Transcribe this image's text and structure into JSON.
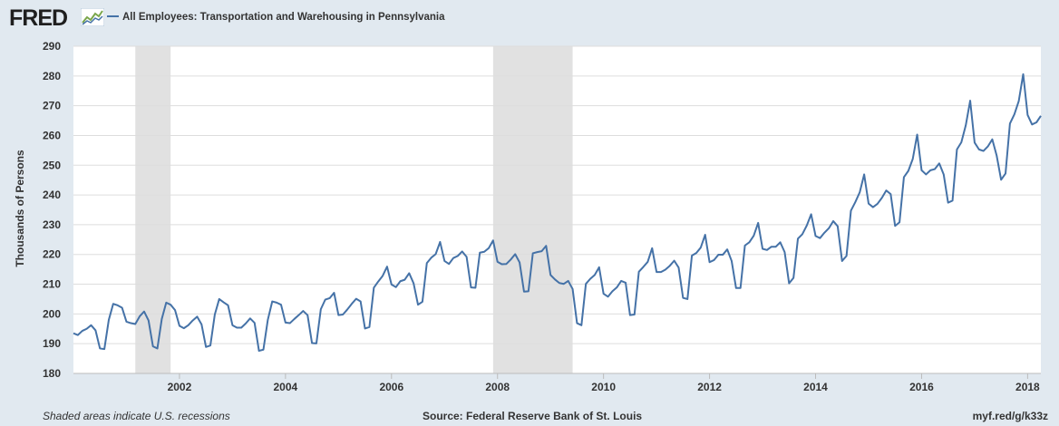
{
  "header": {
    "logo_text": "FRED",
    "logo_icon": "line-chart-icon",
    "legend_label": "All Employees: Transportation and Warehousing in Pennsylvania"
  },
  "footer": {
    "recessions_note": "Shaded areas indicate U.S. recessions",
    "source": "Source: Federal Reserve Bank of St. Louis",
    "short_url": "myf.red/g/k33z"
  },
  "colors": {
    "background": "#e1e9f0",
    "plot_background": "#ffffff",
    "series": "#4572a7",
    "recession": "#e1e1e1",
    "gridline": "#dddddd"
  },
  "chart_data": {
    "type": "line",
    "ylabel": "Thousands of Persons",
    "xlabel": "",
    "ylim": [
      180,
      290
    ],
    "yticks": [
      180,
      190,
      200,
      210,
      220,
      230,
      240,
      250,
      260,
      270,
      280,
      290
    ],
    "xlim": [
      2000.0,
      2018.25
    ],
    "xticks": [
      2002,
      2004,
      2006,
      2008,
      2010,
      2012,
      2014,
      2016,
      2018
    ],
    "grid": "horizontal",
    "legend_position": "top-left",
    "recessions": [
      [
        2001.167,
        2001.833
      ],
      [
        2007.917,
        2009.417
      ]
    ],
    "series": [
      {
        "name": "All Employees: Transportation and Warehousing in Pennsylvania",
        "start": "2000-01",
        "frequency": "monthly",
        "values": [
          193.5,
          192.9,
          194.3,
          195.0,
          196.2,
          194.5,
          188.4,
          188.2,
          198.0,
          203.4,
          202.9,
          202.1,
          197.4,
          196.9,
          196.6,
          199.2,
          200.8,
          197.8,
          189.1,
          188.4,
          198.3,
          203.8,
          203.1,
          201.3,
          196.0,
          195.2,
          196.2,
          197.8,
          199.1,
          196.5,
          188.9,
          189.4,
          199.8,
          205.0,
          203.9,
          202.9,
          196.2,
          195.4,
          195.4,
          196.8,
          198.5,
          197.0,
          187.6,
          188.0,
          198.0,
          204.2,
          203.8,
          203.1,
          197.1,
          196.9,
          198.3,
          199.6,
          201.0,
          199.6,
          190.2,
          190.1,
          201.6,
          204.8,
          205.3,
          207.1,
          199.6,
          199.8,
          201.5,
          203.4,
          205.1,
          204.2,
          195.1,
          195.6,
          208.8,
          210.9,
          212.8,
          215.9,
          209.9,
          209.0,
          211.0,
          211.5,
          213.7,
          210.3,
          203.1,
          204.1,
          217.1,
          218.9,
          220.1,
          224.2,
          217.8,
          216.8,
          218.8,
          219.5,
          221.0,
          219.2,
          208.9,
          208.8,
          220.6,
          220.9,
          222.1,
          224.7,
          217.5,
          216.7,
          216.8,
          218.3,
          220.1,
          217.3,
          207.5,
          207.6,
          220.4,
          220.8,
          221.1,
          222.9,
          213.1,
          211.6,
          210.4,
          210.1,
          211.1,
          208.4,
          196.9,
          196.2,
          210.1,
          211.8,
          213.1,
          215.7,
          206.8,
          205.8,
          207.6,
          208.9,
          211.1,
          210.5,
          199.6,
          199.8,
          214.2,
          215.8,
          217.5,
          222.1,
          214.1,
          214.1,
          214.9,
          216.2,
          217.9,
          215.6,
          205.4,
          205.0,
          219.6,
          220.5,
          222.3,
          226.6,
          217.4,
          218.1,
          219.9,
          219.9,
          221.7,
          217.8,
          208.7,
          208.7,
          223.0,
          224.1,
          226.3,
          230.6,
          221.9,
          221.5,
          222.6,
          222.6,
          224.1,
          220.8,
          210.3,
          212.1,
          225.3,
          226.8,
          229.7,
          233.5,
          226.2,
          225.5,
          227.3,
          228.8,
          231.2,
          229.5,
          217.8,
          219.5,
          234.7,
          237.6,
          240.9,
          246.9,
          237.1,
          235.9,
          237.0,
          239.0,
          241.5,
          240.3,
          229.6,
          230.8,
          246.0,
          248.1,
          252.1,
          260.3,
          248.3,
          246.9,
          248.3,
          248.7,
          250.6,
          246.9,
          237.4,
          238.1,
          255.3,
          257.7,
          263.4,
          271.7,
          257.6,
          255.3,
          254.8,
          256.3,
          258.7,
          253.2,
          245.1,
          247.2,
          264.0,
          267.1,
          271.6,
          280.6,
          266.9,
          263.7,
          264.4,
          266.6
        ]
      }
    ]
  }
}
